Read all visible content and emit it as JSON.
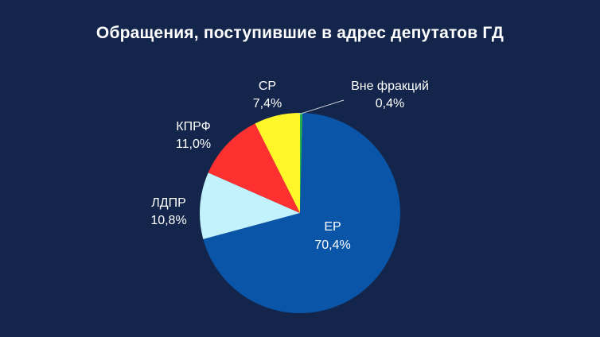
{
  "chart_data": {
    "type": "pie",
    "title": "Обращения, поступившие в адрес депутатов ГД",
    "slices": [
      {
        "label": "ЕР",
        "value": 70.4,
        "value_label": "70,4%",
        "color": "#0a55a8",
        "text_color": "#ffffff"
      },
      {
        "label": "ЛДПР",
        "value": 10.8,
        "value_label": "10,8%",
        "color": "#c2f2fb",
        "text_color": "#ffffff"
      },
      {
        "label": "КПРФ",
        "value": 11.0,
        "value_label": "11,0%",
        "color": "#ff3030",
        "text_color": "#ffffff"
      },
      {
        "label": "СР",
        "value": 7.4,
        "value_label": "7,4%",
        "color": "#fff62a",
        "text_color": "#ffffff"
      },
      {
        "label": "Вне фракций",
        "value": 0.4,
        "value_label": "0,4%",
        "color": "#25b04a",
        "text_color": "#ffffff"
      }
    ],
    "legend": "none"
  }
}
